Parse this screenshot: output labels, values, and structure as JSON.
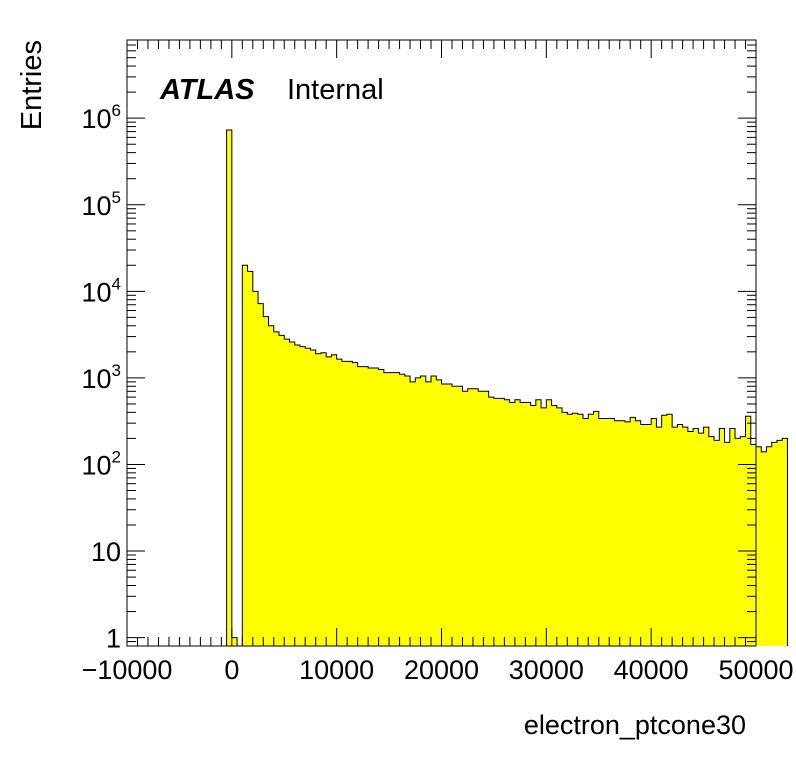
{
  "chart_data": {
    "type": "histogram",
    "xlabel": "electron_ptcone30",
    "ylabel": "Entries",
    "xlim": [
      -10000,
      50000
    ],
    "ylim": [
      0.8,
      8000000
    ],
    "yscale": "log",
    "bin_width": 500,
    "fill_color": "#ffff00",
    "line_color": "#000000",
    "x_ticks": [
      {
        "value": -10000,
        "label": "−10000"
      },
      {
        "value": 0,
        "label": "0"
      },
      {
        "value": 10000,
        "label": "10000"
      },
      {
        "value": 20000,
        "label": "20000"
      },
      {
        "value": 30000,
        "label": "30000"
      },
      {
        "value": 40000,
        "label": "40000"
      },
      {
        "value": 50000,
        "label": "50000"
      }
    ],
    "y_ticks": [
      {
        "value": 1,
        "base": "1",
        "exp": ""
      },
      {
        "value": 10,
        "base": "10",
        "exp": ""
      },
      {
        "value": 100,
        "base": "10",
        "exp": "2"
      },
      {
        "value": 1000,
        "base": "10",
        "exp": "3"
      },
      {
        "value": 10000,
        "base": "10",
        "exp": "4"
      },
      {
        "value": 100000,
        "base": "10",
        "exp": "5"
      },
      {
        "value": 1000000,
        "base": "10",
        "exp": "6"
      }
    ],
    "bins_start": -500,
    "counts": [
      730000,
      1,
      0,
      20000,
      17000,
      10000,
      7200,
      5100,
      4000,
      3400,
      3100,
      2800,
      2600,
      2400,
      2300,
      2200,
      2100,
      1900,
      1950,
      1750,
      1850,
      1650,
      1550,
      1550,
      1500,
      1350,
      1350,
      1300,
      1300,
      1250,
      1150,
      1150,
      1150,
      1100,
      1050,
      900,
      1000,
      1050,
      900,
      1050,
      950,
      850,
      850,
      800,
      800,
      700,
      750,
      750,
      700,
      700,
      600,
      580,
      580,
      560,
      520,
      560,
      520,
      520,
      480,
      560,
      450,
      560,
      480,
      450,
      400,
      380,
      390,
      380,
      340,
      380,
      410,
      340,
      340,
      340,
      320,
      320,
      310,
      350,
      320,
      290,
      290,
      340,
      270,
      370,
      380,
      270,
      290,
      270,
      240,
      260,
      230,
      270,
      210,
      190,
      260,
      180,
      260,
      200,
      210,
      360,
      170,
      160,
      140,
      160,
      180,
      190,
      200
    ]
  },
  "labels": {
    "experiment": "ATLAS",
    "status": "Internal"
  }
}
